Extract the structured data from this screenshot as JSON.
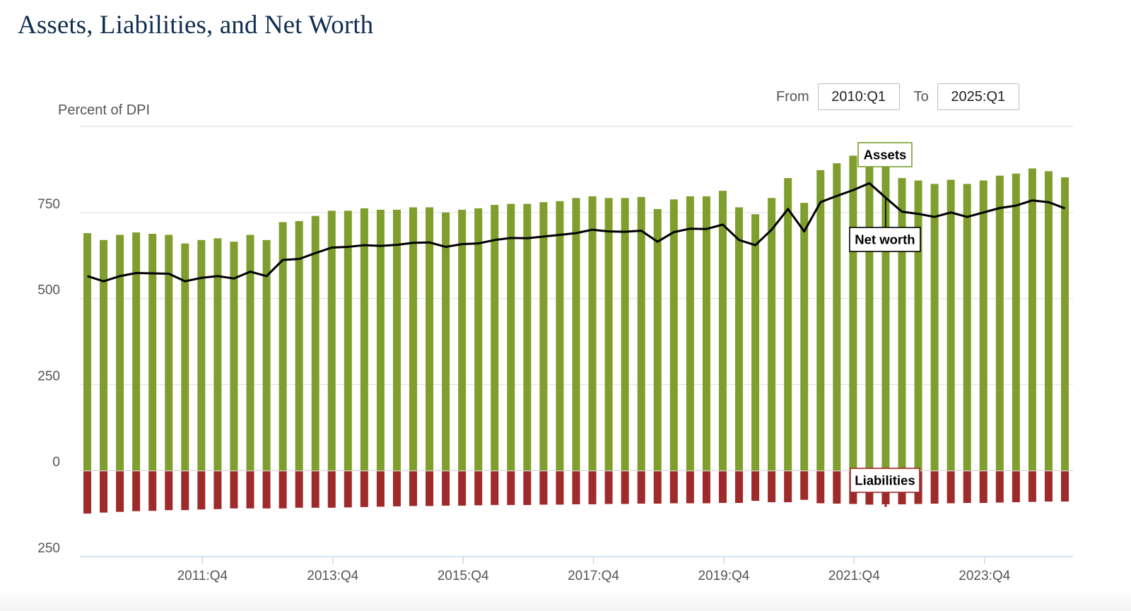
{
  "page": {
    "title": "Assets, Liabilities, and Net Worth",
    "unit_label": "Percent of DPI"
  },
  "range": {
    "from_label": "From",
    "from_value": "2010:Q1",
    "to_label": "To",
    "to_value": "2025:Q1"
  },
  "colors": {
    "assets": "#7f9e2d",
    "liabilities": "#9e2a2b",
    "net_worth": "#000000",
    "title": "#112e51",
    "grid": "#e2e2e2",
    "axis": "#c8d7ec"
  },
  "chart_data": {
    "type": "bar",
    "title": "Assets, Liabilities, and Net Worth",
    "ylabel": "Percent of DPI",
    "ylim": [
      -250,
      1000
    ],
    "yticks": [
      750,
      500,
      250,
      0,
      -250
    ],
    "ytick_labels": [
      "750",
      "500",
      "250",
      "0",
      "250"
    ],
    "xtick_labels": [
      {
        "label": "2011:Q4",
        "index": 7
      },
      {
        "label": "2013:Q4",
        "index": 15
      },
      {
        "label": "2015:Q4",
        "index": 23
      },
      {
        "label": "2017:Q4",
        "index": 31
      },
      {
        "label": "2019:Q4",
        "index": 39
      },
      {
        "label": "2021:Q4",
        "index": 47
      },
      {
        "label": "2023:Q4",
        "index": 55
      }
    ],
    "series": [
      {
        "name": "Assets",
        "type": "bar",
        "values": [
          690,
          670,
          685,
          692,
          688,
          685,
          660,
          670,
          675,
          665,
          685,
          670,
          722,
          725,
          740,
          755,
          755,
          762,
          758,
          758,
          765,
          765,
          750,
          758,
          762,
          772,
          775,
          775,
          780,
          783,
          792,
          797,
          792,
          792,
          795,
          760,
          788,
          797,
          797,
          813,
          765,
          745,
          792,
          850,
          778,
          873,
          893,
          915,
          935,
          893,
          850,
          843,
          833,
          845,
          833,
          843,
          857,
          863,
          878,
          870,
          852
        ]
      },
      {
        "name": "Liabilities",
        "type": "bar",
        "values": [
          -125,
          -122,
          -120,
          -118,
          -117,
          -115,
          -115,
          -113,
          -112,
          -110,
          -110,
          -110,
          -110,
          -108,
          -108,
          -108,
          -107,
          -106,
          -105,
          -104,
          -103,
          -103,
          -102,
          -102,
          -101,
          -100,
          -100,
          -100,
          -99,
          -99,
          -98,
          -98,
          -97,
          -97,
          -96,
          -96,
          -95,
          -95,
          -95,
          -94,
          -94,
          -88,
          -92,
          -92,
          -85,
          -95,
          -96,
          -97,
          -99,
          -98,
          -98,
          -97,
          -96,
          -95,
          -94,
          -94,
          -93,
          -92,
          -91,
          -90,
          -90
        ]
      },
      {
        "name": "Net worth",
        "type": "line",
        "values": [
          565,
          550,
          565,
          574,
          573,
          572,
          550,
          560,
          565,
          558,
          578,
          565,
          612,
          615,
          632,
          648,
          650,
          655,
          653,
          656,
          662,
          663,
          650,
          658,
          660,
          670,
          676,
          675,
          680,
          685,
          690,
          700,
          695,
          694,
          697,
          665,
          693,
          703,
          702,
          715,
          670,
          655,
          700,
          760,
          695,
          780,
          798,
          815,
          835,
          793,
          752,
          746,
          737,
          750,
          737,
          750,
          763,
          770,
          785,
          780,
          762
        ]
      }
    ],
    "annotations": [
      {
        "label": "Assets",
        "series": "Assets",
        "index": 49
      },
      {
        "label": "Net worth",
        "series": "Net worth",
        "index": 49
      },
      {
        "label": "Liabilities",
        "series": "Liabilities",
        "index": 49
      }
    ]
  }
}
